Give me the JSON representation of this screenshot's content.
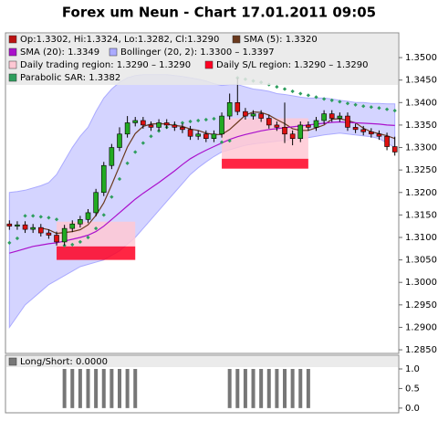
{
  "chart_data": [
    {
      "type": "candlestick",
      "title": "Forex um Neun - Chart 17.01.2011 09:05",
      "up_color": "#22aa22",
      "down_color": "#dd1111",
      "ylim": [
        1.2842,
        1.3555
      ],
      "yticks": [
        {
          "value": 1.285,
          "label": "1.2850"
        },
        {
          "value": 1.29,
          "label": "1.2900"
        },
        {
          "value": 1.295,
          "label": "1.2950"
        },
        {
          "value": 1.3,
          "label": "1.3000"
        },
        {
          "value": 1.305,
          "label": "1.3050"
        },
        {
          "value": 1.31,
          "label": "1.3100"
        },
        {
          "value": 1.315,
          "label": "1.3150"
        },
        {
          "value": 1.32,
          "label": "1.3200"
        },
        {
          "value": 1.325,
          "label": "1.3250"
        },
        {
          "value": 1.33,
          "label": "1.3300"
        },
        {
          "value": 1.335,
          "label": "1.3350"
        },
        {
          "value": 1.34,
          "label": "1.3400"
        },
        {
          "value": 1.345,
          "label": "1.3450"
        },
        {
          "value": 1.35,
          "label": "1.3500"
        }
      ],
      "series": [
        {
          "name": "Op:1.3302, Hi:1.3324, Lo:1.3282, Cl:1.3290",
          "kind": "ohlc",
          "color": "#bb1111",
          "open": [
            1.313,
            1.3125,
            1.3128,
            1.3118,
            1.3122,
            1.311,
            1.3105,
            1.309,
            1.312,
            1.313,
            1.314,
            1.3155,
            1.32,
            1.326,
            1.33,
            1.333,
            1.3355,
            1.336,
            1.335,
            1.3345,
            1.3355,
            1.335,
            1.3345,
            1.334,
            1.3325,
            1.333,
            1.332,
            1.333,
            1.337,
            1.34,
            1.338,
            1.337,
            1.3375,
            1.3365,
            1.335,
            1.3345,
            1.333,
            1.332,
            1.335,
            1.3345,
            1.336,
            1.3375,
            1.3365,
            1.337,
            1.3345,
            1.334,
            1.3335,
            1.333,
            1.3325,
            1.3302
          ],
          "high": [
            1.3138,
            1.3136,
            1.3136,
            1.313,
            1.313,
            1.3118,
            1.3113,
            1.3128,
            1.3138,
            1.3148,
            1.3163,
            1.3208,
            1.3268,
            1.3308,
            1.3345,
            1.337,
            1.3368,
            1.3368,
            1.3358,
            1.3363,
            1.3363,
            1.3358,
            1.3353,
            1.3348,
            1.3338,
            1.3338,
            1.3338,
            1.3378,
            1.342,
            1.3455,
            1.3388,
            1.3383,
            1.3383,
            1.3373,
            1.3358,
            1.34,
            1.3338,
            1.3358,
            1.3358,
            1.3368,
            1.3383,
            1.3383,
            1.3378,
            1.3378,
            1.3353,
            1.3348,
            1.3343,
            1.3338,
            1.3333,
            1.3324
          ],
          "low": [
            1.3117,
            1.3117,
            1.311,
            1.311,
            1.3102,
            1.3097,
            1.3082,
            1.3082,
            1.3112,
            1.3122,
            1.3132,
            1.3147,
            1.3192,
            1.3252,
            1.3292,
            1.3322,
            1.3347,
            1.3342,
            1.3337,
            1.3337,
            1.3342,
            1.3337,
            1.3332,
            1.3317,
            1.3317,
            1.3312,
            1.3312,
            1.3322,
            1.3362,
            1.3372,
            1.3362,
            1.3362,
            1.3357,
            1.3342,
            1.3337,
            1.331,
            1.3305,
            1.3312,
            1.3337,
            1.3337,
            1.3352,
            1.3357,
            1.3357,
            1.3337,
            1.3332,
            1.3327,
            1.3322,
            1.3317,
            1.3294,
            1.3282
          ],
          "close": [
            1.3125,
            1.3128,
            1.3118,
            1.3122,
            1.311,
            1.3105,
            1.309,
            1.312,
            1.313,
            1.314,
            1.3155,
            1.32,
            1.326,
            1.33,
            1.333,
            1.3355,
            1.336,
            1.335,
            1.3345,
            1.3355,
            1.335,
            1.3345,
            1.334,
            1.3325,
            1.333,
            1.332,
            1.333,
            1.337,
            1.34,
            1.338,
            1.337,
            1.3375,
            1.3365,
            1.335,
            1.3345,
            1.333,
            1.332,
            1.335,
            1.3345,
            1.336,
            1.3375,
            1.3365,
            1.337,
            1.3345,
            1.334,
            1.3335,
            1.333,
            1.3325,
            1.3302,
            1.329
          ]
        },
        {
          "name": "SMA (5): 1.3320",
          "kind": "line",
          "color": "#6b3a1e",
          "values": [
            null,
            null,
            null,
            null,
            1.3121,
            1.3117,
            1.3109,
            1.3111,
            1.3113,
            1.3117,
            1.3128,
            1.3149,
            1.3177,
            1.3217,
            1.3259,
            1.3301,
            1.3331,
            1.3347,
            1.3352,
            1.3353,
            1.3352,
            1.3349,
            1.3347,
            1.3341,
            1.3338,
            1.3332,
            1.3329,
            1.3329,
            1.334,
            1.3356,
            1.3372,
            1.3379,
            1.3378,
            1.3372,
            1.3362,
            1.3353,
            1.3342,
            1.3338,
            1.3338,
            1.3344,
            1.335,
            1.3363,
            1.3364,
            1.336,
            1.3355,
            1.3343,
            1.3335,
            1.3331,
            1.3326,
            1.332
          ]
        },
        {
          "name": "SMA (20): 1.3349",
          "kind": "line",
          "color": "#aa11cc",
          "values": [
            1.3065,
            1.307,
            1.3075,
            1.308,
            1.3083,
            1.3086,
            1.3088,
            1.3092,
            1.3096,
            1.31,
            1.3105,
            1.3113,
            1.3125,
            1.314,
            1.3155,
            1.317,
            1.3185,
            1.3198,
            1.321,
            1.3222,
            1.3235,
            1.3248,
            1.3262,
            1.3275,
            1.3285,
            1.3294,
            1.3302,
            1.331,
            1.3318,
            1.3324,
            1.3329,
            1.3333,
            1.3337,
            1.334,
            1.3342,
            1.3344,
            1.3346,
            1.3348,
            1.335,
            1.3352,
            1.3354,
            1.3356,
            1.3357,
            1.3356,
            1.3355,
            1.3354,
            1.3353,
            1.3352,
            1.335,
            1.3349
          ]
        },
        {
          "name": "Bollinger (20, 2): 1.3300 – 1.3397",
          "kind": "band",
          "color": "#aaaaff",
          "upper": [
            1.32,
            1.3202,
            1.3205,
            1.321,
            1.3215,
            1.3222,
            1.324,
            1.327,
            1.33,
            1.3325,
            1.3345,
            1.338,
            1.341,
            1.343,
            1.3445,
            1.3455,
            1.346,
            1.3462,
            1.3462,
            1.3462,
            1.3462,
            1.346,
            1.3458,
            1.3455,
            1.3452,
            1.3448,
            1.3442,
            1.3438,
            1.344,
            1.344,
            1.3435,
            1.343,
            1.3428,
            1.3425,
            1.342,
            1.3418,
            1.3415,
            1.3412,
            1.341,
            1.341,
            1.341,
            1.3408,
            1.3405,
            1.3403,
            1.34,
            1.34,
            1.3398,
            1.3398,
            1.3397,
            1.3397
          ],
          "lower": [
            1.29,
            1.2925,
            1.295,
            1.2965,
            1.298,
            1.2995,
            1.3005,
            1.3015,
            1.3025,
            1.3035,
            1.304,
            1.3045,
            1.305,
            1.306,
            1.307,
            1.3085,
            1.31,
            1.312,
            1.314,
            1.316,
            1.318,
            1.32,
            1.322,
            1.324,
            1.3255,
            1.3268,
            1.328,
            1.329,
            1.3295,
            1.33,
            1.3305,
            1.3308,
            1.331,
            1.3312,
            1.3314,
            1.3316,
            1.3318,
            1.332,
            1.3322,
            1.3325,
            1.3328,
            1.333,
            1.3332,
            1.333,
            1.3328,
            1.3326,
            1.3324,
            1.332,
            1.331,
            1.33
          ]
        },
        {
          "name": "Daily trading region: 1.3290 – 1.3290",
          "kind": "region",
          "color": "#ffc8d4",
          "regions": [
            {
              "start": 6,
              "end": 16,
              "top": 1.3135,
              "bottom": 1.308
            },
            {
              "start": 27,
              "end": 38,
              "top": 1.3365,
              "bottom": 1.3275
            }
          ]
        },
        {
          "name": "Daily S/L region: 1.3290 – 1.3290",
          "kind": "region",
          "color": "#ff0022",
          "regions": [
            {
              "start": 6,
              "end": 16,
              "top": 1.308,
              "bottom": 1.305
            },
            {
              "start": 27,
              "end": 38,
              "top": 1.3275,
              "bottom": 1.3253
            }
          ]
        },
        {
          "name": "Parabolic SAR: 1.3382",
          "kind": "dots",
          "color": "#2e9e5e",
          "values": [
            1.3088,
            1.3098,
            1.3148,
            1.3148,
            1.3146,
            1.3144,
            1.314,
            1.3082,
            1.3084,
            1.309,
            1.31,
            1.312,
            1.315,
            1.319,
            1.323,
            1.3265,
            1.329,
            1.331,
            1.3325,
            1.3337,
            1.3345,
            1.335,
            1.3355,
            1.3358,
            1.336,
            1.3362,
            1.3364,
            1.3312,
            1.3315,
            1.3455,
            1.3452,
            1.3448,
            1.3445,
            1.344,
            1.3435,
            1.343,
            1.3425,
            1.342,
            1.3416,
            1.3412,
            1.3408,
            1.3405,
            1.3402,
            1.3398,
            1.3395,
            1.3392,
            1.339,
            1.3388,
            1.3385,
            1.3382
          ]
        }
      ]
    },
    {
      "type": "bar",
      "ylim": [
        -0.12,
        1.35
      ],
      "yticks": [
        {
          "value": 0,
          "label": "0.0"
        },
        0.5,
        {
          "value": 1,
          "label": "1.0"
        }
      ],
      "series": [
        {
          "name": "Long/Short: 0.0000",
          "color": "#777777",
          "values": [
            0,
            0,
            0,
            0,
            0,
            0,
            0,
            1,
            1,
            1,
            1,
            1,
            1,
            1,
            1,
            1,
            1,
            0,
            0,
            0,
            0,
            0,
            0,
            0,
            0,
            0,
            0,
            0,
            1,
            1,
            1,
            1,
            1,
            1,
            1,
            1,
            1,
            1,
            1,
            0,
            0,
            0,
            0,
            0,
            0,
            0,
            0,
            0,
            0,
            0
          ]
        }
      ]
    }
  ]
}
